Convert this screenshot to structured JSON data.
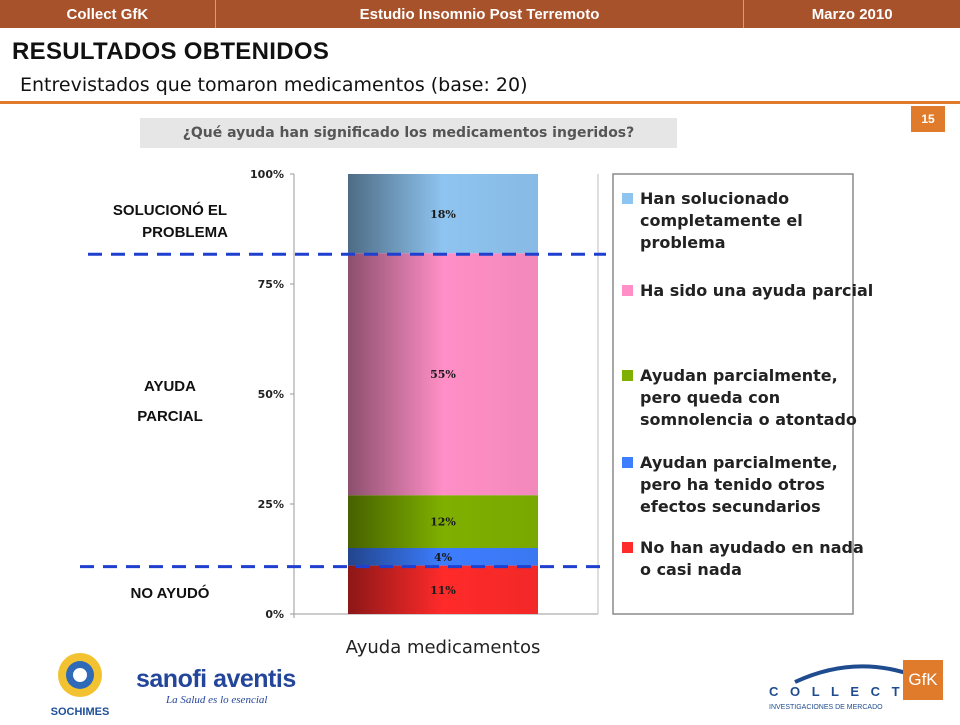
{
  "header": {
    "left": "Collect GfK",
    "center": "Estudio Insomnio Post Terremoto",
    "right": "Marzo 2010"
  },
  "page_title": "RESULTADOS OBTENIDOS",
  "subtitle": "Entrevistados que tomaron medicamentos (base: 20)",
  "page_number": "15",
  "question": "¿Qué ayuda han significado los medicamentos ingeridos?",
  "side_labels": {
    "solved_line1": "SOLUCIONÓ EL",
    "solved_line2": "PROBLEMA",
    "partial_line1": "AYUDA",
    "partial_line2": "PARCIAL",
    "none": "NO AYUDÓ"
  },
  "chart_data": {
    "type": "bar",
    "stacked": true,
    "categories": [
      "Ayuda medicamentos"
    ],
    "xlabel": "Ayuda medicamentos",
    "ylim": [
      0,
      100
    ],
    "yticks": [
      "0%",
      "25%",
      "50%",
      "75%",
      "100%"
    ],
    "series": [
      {
        "name": "No han ayudado en nada o casi nada",
        "values": [
          11
        ],
        "label": "11%",
        "color": "#ff2a2a"
      },
      {
        "name": "Ayudan parcialmente, pero ha tenido otros efectos secundarios",
        "values": [
          4
        ],
        "label": "4%",
        "color": "#3d7dff"
      },
      {
        "name": "Ayudan parcialmente, pero queda con somnolencia o atontado",
        "values": [
          12
        ],
        "label": "12%",
        "color": "#7fb000"
      },
      {
        "name": "Ha sido una ayuda parcial",
        "values": [
          55
        ],
        "label": "55%",
        "color": "#ff8fc6"
      },
      {
        "name": "Han solucionado completamente el problema",
        "values": [
          18
        ],
        "label": "18%",
        "color": "#8ec4f0"
      }
    ],
    "legend": [
      {
        "lines": [
          "Han solucionado",
          "completamente el",
          "problema"
        ],
        "color": "#8ec4f0"
      },
      {
        "lines": [
          "Ha sido una ayuda parcial"
        ],
        "color": "#ff8fc6"
      },
      {
        "lines": [
          "Ayudan parcialmente,",
          "pero queda con",
          "somnolencia o atontado"
        ],
        "color": "#7fb000"
      },
      {
        "lines": [
          "Ayudan parcialmente,",
          "pero ha tenido otros",
          "efectos secundarios"
        ],
        "color": "#3d7dff"
      },
      {
        "lines": [
          "No han ayudado en nada",
          "o casi nada"
        ],
        "color": "#ff2a2a"
      }
    ],
    "legend_position": "right"
  },
  "logos": {
    "sochimes": "SOCHIMES",
    "sanofi": "sanofi aventis",
    "sanofi_tagline": "La Salud es lo esencial",
    "collect": "C O L L E C T",
    "collect_tagline": "INVESTIGACIONES DE MERCADO",
    "gfk": "GfK"
  }
}
